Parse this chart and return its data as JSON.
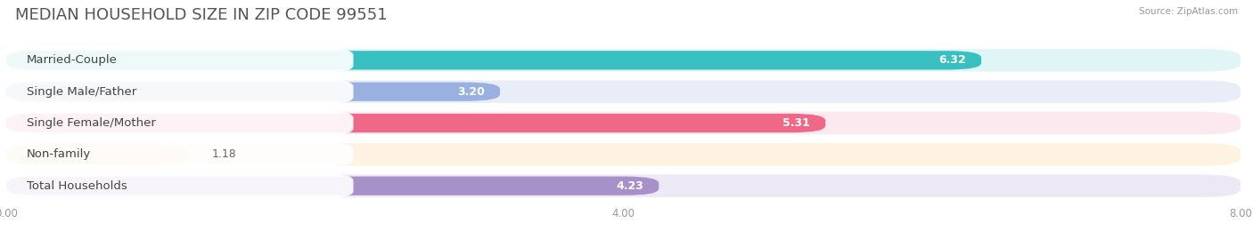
{
  "title": "MEDIAN HOUSEHOLD SIZE IN ZIP CODE 99551",
  "source": "Source: ZipAtlas.com",
  "categories": [
    "Married-Couple",
    "Single Male/Father",
    "Single Female/Mother",
    "Non-family",
    "Total Households"
  ],
  "values": [
    6.32,
    3.2,
    5.31,
    1.18,
    4.23
  ],
  "bar_colors": [
    "#38bfbf",
    "#9ab0e0",
    "#f06888",
    "#f5c890",
    "#a890c8"
  ],
  "bar_bg_colors": [
    "#e0f5f5",
    "#e8edf8",
    "#fce8ef",
    "#fef2e0",
    "#ede8f5"
  ],
  "xlim": [
    0,
    8.0
  ],
  "xticks": [
    0.0,
    4.0,
    8.0
  ],
  "xtick_labels": [
    "0.00",
    "4.00",
    "8.00"
  ],
  "title_fontsize": 13,
  "label_fontsize": 9.5,
  "value_fontsize": 9,
  "background_color": "#ffffff",
  "value_inside_color": "white",
  "value_outside_color": "#666666",
  "value_inside_threshold": 2.0
}
